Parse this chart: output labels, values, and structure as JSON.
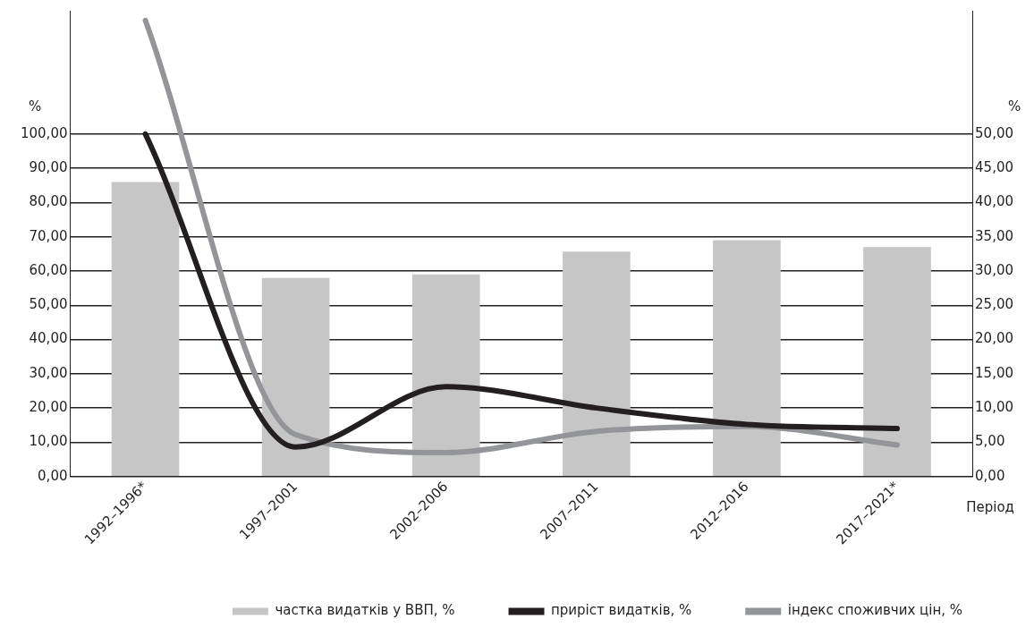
{
  "chart_data": {
    "type": "bar",
    "categories": [
      "1992–1996*",
      "1997–2001",
      "2002–2006",
      "2007–2011",
      "2012–2016",
      "2017–2021*"
    ],
    "series": [
      {
        "name": "частка видатків у ВВП, %",
        "color": "#c6c6c6",
        "values": [
          86,
          58,
          59,
          65.7,
          69,
          67
        ]
      },
      {
        "name": "приріст видатків, %",
        "type": "line",
        "axis": "y2",
        "color": "#231f20",
        "values": [
          50,
          4.3,
          13.1,
          10,
          7.6,
          7
        ]
      },
      {
        "name": "індекс споживчих цін, %",
        "type": "line",
        "axis": "y2",
        "color": "#939598",
        "values": [
          66.6,
          6.1,
          3.5,
          6.6,
          7.3,
          4.6
        ]
      }
    ],
    "ylabel": "%",
    "y2label": "%",
    "xlabel": "Період",
    "ylim": [
      0,
      136
    ],
    "yticks": [
      {
        "value": 0,
        "label": "0,00"
      },
      {
        "value": 10,
        "label": "10,00"
      },
      {
        "value": 20,
        "label": "20,00"
      },
      {
        "value": 30,
        "label": "30,00"
      },
      {
        "value": 40,
        "label": "40,00"
      },
      {
        "value": 50,
        "label": "50,00"
      },
      {
        "value": 60,
        "label": "60,00"
      },
      {
        "value": 70,
        "label": "70,00"
      },
      {
        "value": 80,
        "label": "80,00"
      },
      {
        "value": 90,
        "label": "90,00"
      },
      {
        "value": 100,
        "label": "100,00"
      }
    ],
    "y2lim": [
      0,
      68
    ],
    "y2ticks": [
      {
        "value": 0,
        "label": "0,00"
      },
      {
        "value": 5,
        "label": "5,00"
      },
      {
        "value": 10,
        "label": "10,00"
      },
      {
        "value": 15,
        "label": "15,00"
      },
      {
        "value": 20,
        "label": "20,00"
      },
      {
        "value": 25,
        "label": "25,00"
      },
      {
        "value": 30,
        "label": "30,00"
      },
      {
        "value": 35,
        "label": "35,00"
      },
      {
        "value": 40,
        "label": "40,00"
      },
      {
        "value": 45,
        "label": "45,00"
      },
      {
        "value": 50,
        "label": "50,00"
      }
    ],
    "grid": "y",
    "legend": "bottom"
  }
}
